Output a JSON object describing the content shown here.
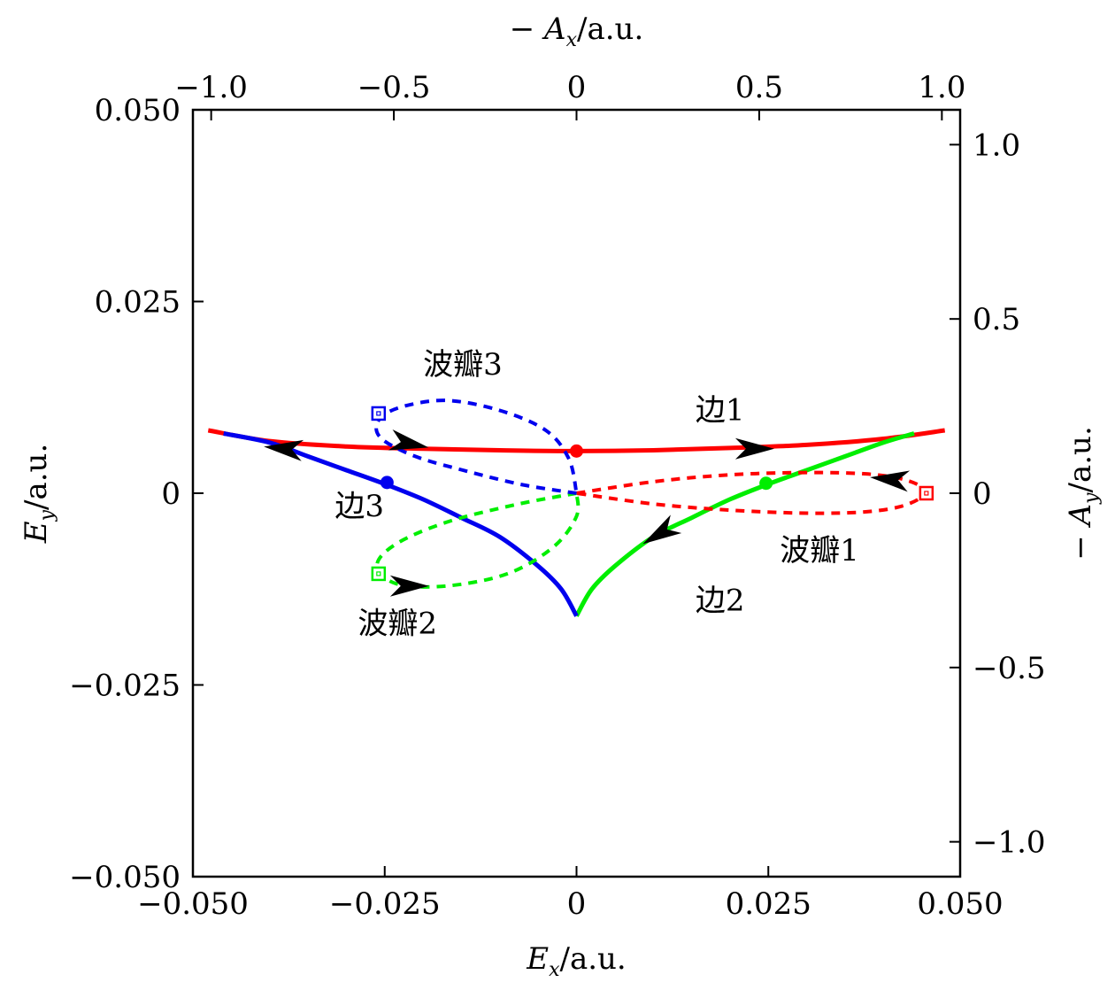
{
  "chart_data": {
    "type": "line",
    "bottom_axis": {
      "label": "E_x/a.u.",
      "ticks": [
        -0.05,
        -0.025,
        0,
        0.025,
        0.05
      ],
      "tick_labels": [
        "−0.050",
        "−0.025",
        "0",
        "0.025",
        "0.050"
      ],
      "range": [
        -0.05,
        0.05
      ]
    },
    "left_axis": {
      "label": "E_y/a.u.",
      "ticks": [
        -0.05,
        -0.025,
        0,
        0.025,
        0.05
      ],
      "tick_labels": [
        "−0.050",
        "−0.025",
        "0",
        "0.025",
        "0.050"
      ],
      "range": [
        -0.05,
        0.05
      ]
    },
    "top_axis": {
      "label": "−A_x/a.u.",
      "ticks": [
        -1.0,
        -0.5,
        0,
        0.5,
        1.0
      ],
      "tick_labels": [
        "−1.0",
        "−0.5",
        "0",
        "0.5",
        "1.0"
      ],
      "range": [
        -1.05,
        1.05
      ]
    },
    "right_axis": {
      "label": "−A_y/a.u.",
      "ticks": [
        -1.0,
        -0.5,
        0,
        0.5,
        1.0
      ],
      "tick_labels": [
        "−1.0",
        "−0.5",
        "0",
        "0.5",
        "1.0"
      ],
      "range": [
        -1.1,
        1.1
      ]
    },
    "grid": false,
    "series": [
      {
        "name": "边1",
        "style": "solid",
        "color": "#ff0000",
        "axes": "E",
        "points": [
          [
            -0.048,
            0.0082
          ],
          [
            -0.04,
            0.0068
          ],
          [
            -0.03,
            0.0061
          ],
          [
            -0.02,
            0.0058
          ],
          [
            -0.01,
            0.0056
          ],
          [
            0,
            0.0055
          ],
          [
            0.01,
            0.0056
          ],
          [
            0.02,
            0.0059
          ],
          [
            0.03,
            0.0063
          ],
          [
            0.04,
            0.0071
          ],
          [
            0.048,
            0.0082
          ]
        ],
        "marker": [
          0,
          0.0055
        ]
      },
      {
        "name": "边2",
        "style": "solid",
        "color": "#00ee00",
        "axes": "E",
        "points": [
          [
            0,
            -0.016
          ],
          [
            0.002,
            -0.0125
          ],
          [
            0.005,
            -0.0095
          ],
          [
            0.01,
            -0.0057
          ],
          [
            0.015,
            -0.0032
          ],
          [
            0.02,
            -0.0008
          ],
          [
            0.025,
            0.0012
          ],
          [
            0.03,
            0.003
          ],
          [
            0.035,
            0.0048
          ],
          [
            0.04,
            0.0066
          ],
          [
            0.044,
            0.0078
          ]
        ],
        "marker": [
          0.0247,
          0.0013
        ]
      },
      {
        "name": "边3",
        "style": "solid",
        "color": "#0000ee",
        "axes": "E",
        "points": [
          [
            0,
            -0.016
          ],
          [
            -0.002,
            -0.0125
          ],
          [
            -0.005,
            -0.0095
          ],
          [
            -0.01,
            -0.0057
          ],
          [
            -0.015,
            -0.0032
          ],
          [
            -0.02,
            -0.0008
          ],
          [
            -0.025,
            0.0012
          ],
          [
            -0.03,
            0.003
          ],
          [
            -0.035,
            0.0048
          ],
          [
            -0.04,
            0.0066
          ],
          [
            -0.046,
            0.0078
          ]
        ],
        "marker": [
          -0.0247,
          0.0014
        ]
      },
      {
        "name": "波瓣1",
        "style": "dashed",
        "color": "#ff0000",
        "axes": "E",
        "points": [
          [
            0,
            0
          ],
          [
            0.01,
            0.0015
          ],
          [
            0.02,
            0.0024
          ],
          [
            0.03,
            0.0027
          ],
          [
            0.038,
            0.0025
          ],
          [
            0.043,
            0.0017
          ],
          [
            0.0455,
            0.0002
          ],
          [
            0.043,
            -0.0015
          ],
          [
            0.038,
            -0.0024
          ],
          [
            0.03,
            -0.0026
          ],
          [
            0.02,
            -0.0022
          ],
          [
            0.01,
            -0.0014
          ],
          [
            0,
            0
          ]
        ],
        "marker": [
          0.0456,
          0
        ]
      },
      {
        "name": "波瓣2",
        "style": "dashed",
        "color": "#00ee00",
        "axes": "E",
        "points": [
          [
            0,
            0
          ],
          [
            -0.008,
            -0.0015
          ],
          [
            -0.017,
            -0.0038
          ],
          [
            -0.0235,
            -0.0066
          ],
          [
            -0.026,
            -0.0094
          ],
          [
            -0.0235,
            -0.0118
          ],
          [
            -0.017,
            -0.0121
          ],
          [
            -0.009,
            -0.0105
          ],
          [
            -0.003,
            -0.007
          ],
          [
            0,
            -0.003
          ],
          [
            0,
            0
          ]
        ],
        "marker": [
          -0.0258,
          -0.0105
        ]
      },
      {
        "name": "波瓣3",
        "style": "dashed",
        "color": "#0000ee",
        "axes": "E",
        "points": [
          [
            0,
            0
          ],
          [
            -0.007,
            0.0011
          ],
          [
            -0.014,
            0.0028
          ],
          [
            -0.021,
            0.0048
          ],
          [
            -0.0255,
            0.0072
          ],
          [
            -0.0258,
            0.0095
          ],
          [
            -0.023,
            0.0112
          ],
          [
            -0.017,
            0.0121
          ],
          [
            -0.01,
            0.0108
          ],
          [
            -0.004,
            0.0082
          ],
          [
            -0.001,
            0.0045
          ],
          [
            0,
            0
          ]
        ],
        "marker": [
          -0.0258,
          0.0104
        ]
      }
    ],
    "arrows": [
      {
        "at": [
          0.023,
          0.0058
        ],
        "dir": [
          1,
          0
        ]
      },
      {
        "at": [
          -0.038,
          0.0058
        ],
        "dir": [
          -1,
          0.1
        ]
      },
      {
        "at": [
          0.011,
          -0.0052
        ],
        "dir": [
          -1,
          -0.6
        ]
      },
      {
        "at": [
          0.041,
          0.0018
        ],
        "dir": [
          -1,
          0.1
        ]
      },
      {
        "at": [
          -0.022,
          -0.0121
        ],
        "dir": [
          1,
          0
        ]
      },
      {
        "at": [
          -0.022,
          0.0065
        ],
        "dir": [
          1,
          -0.2
        ]
      }
    ],
    "annotations": [
      {
        "text": "边1",
        "at": [
          0.0155,
          0.0095
        ]
      },
      {
        "text": "边2",
        "at": [
          0.0155,
          -0.0153
        ]
      },
      {
        "text": "边3",
        "at": [
          -0.0315,
          -0.003
        ]
      },
      {
        "text": "波瓣1",
        "at": [
          0.0265,
          -0.0088
        ]
      },
      {
        "text": "波瓣2",
        "at": [
          -0.0285,
          -0.0183
        ]
      },
      {
        "text": "波瓣3",
        "at": [
          -0.02,
          0.0155
        ]
      }
    ]
  }
}
